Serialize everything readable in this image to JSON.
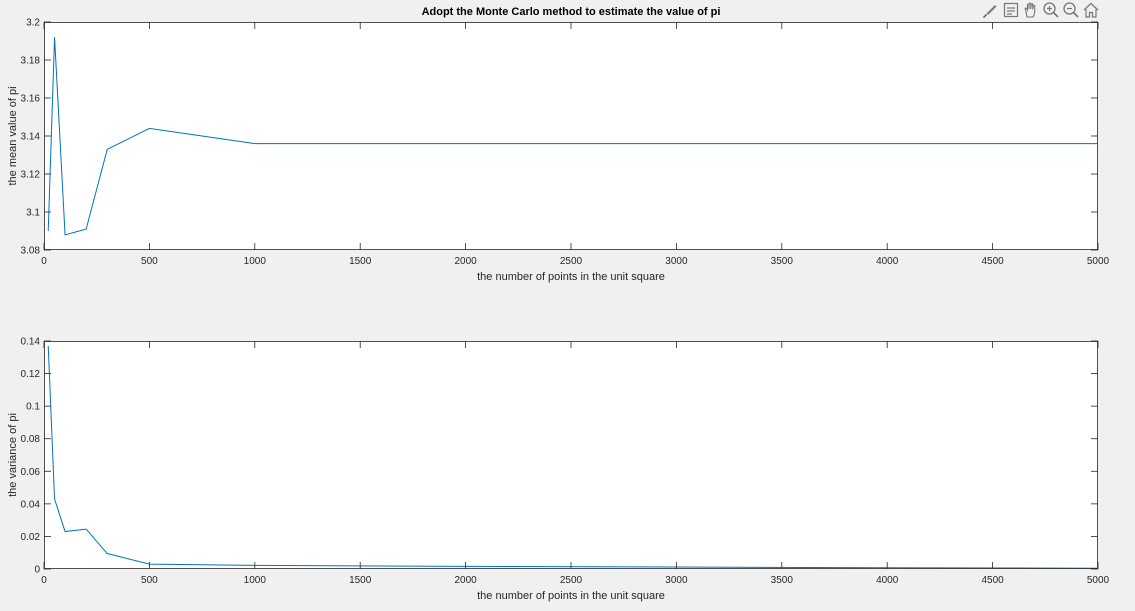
{
  "toolbar": {
    "icons": [
      "brush-icon",
      "data-tip-icon",
      "pan-hand-icon",
      "zoom-in-icon",
      "zoom-out-icon",
      "home-icon"
    ]
  },
  "colors": {
    "line": "#0072bd",
    "axes_bg": "#ffffff",
    "figure_bg": "#f0f0f0",
    "axis": "#262626"
  },
  "chart_data": [
    {
      "type": "line",
      "title": "Adopt the Monte Carlo method to estimate the value of pi",
      "xlabel": "the number of points in the unit square",
      "ylabel": "the mean value of pi",
      "xlim": [
        0,
        5000
      ],
      "ylim": [
        3.08,
        3.2
      ],
      "xticks": [
        0,
        500,
        1000,
        1500,
        2000,
        2500,
        3000,
        3500,
        4000,
        4500,
        5000
      ],
      "yticks": [
        3.08,
        3.1,
        3.12,
        3.14,
        3.16,
        3.18,
        3.2
      ],
      "xtick_labels": [
        "0",
        "500",
        "1000",
        "1500",
        "2000",
        "2500",
        "3000",
        "3500",
        "4000",
        "4500",
        "5000"
      ],
      "ytick_labels": [
        "3.08",
        "3.1",
        "3.12",
        "3.14",
        "3.16",
        "3.18",
        "3.2"
      ],
      "grid": false,
      "x": [
        20,
        50,
        100,
        200,
        300,
        500,
        1000,
        5000
      ],
      "y": [
        3.09,
        3.192,
        3.088,
        3.091,
        3.133,
        3.144,
        3.136,
        3.136
      ]
    },
    {
      "type": "line",
      "title": "",
      "xlabel": "the number of points in the unit square",
      "ylabel": "the variance of pi",
      "xlim": [
        0,
        5000
      ],
      "ylim": [
        0,
        0.14
      ],
      "xticks": [
        0,
        500,
        1000,
        1500,
        2000,
        2500,
        3000,
        3500,
        4000,
        4500,
        5000
      ],
      "yticks": [
        0,
        0.02,
        0.04,
        0.06,
        0.08,
        0.1,
        0.12,
        0.14
      ],
      "xtick_labels": [
        "0",
        "500",
        "1000",
        "1500",
        "2000",
        "2500",
        "3000",
        "3500",
        "4000",
        "4500",
        "5000"
      ],
      "ytick_labels": [
        "0",
        "0.02",
        "0.04",
        "0.06",
        "0.08",
        "0.1",
        "0.12",
        "0.14"
      ],
      "grid": false,
      "x": [
        20,
        50,
        100,
        200,
        300,
        500,
        1000,
        2000,
        3000,
        4000,
        5000
      ],
      "y": [
        0.137,
        0.043,
        0.023,
        0.0245,
        0.0095,
        0.003,
        0.0022,
        0.0016,
        0.0012,
        0.0008,
        0.0005
      ]
    }
  ]
}
